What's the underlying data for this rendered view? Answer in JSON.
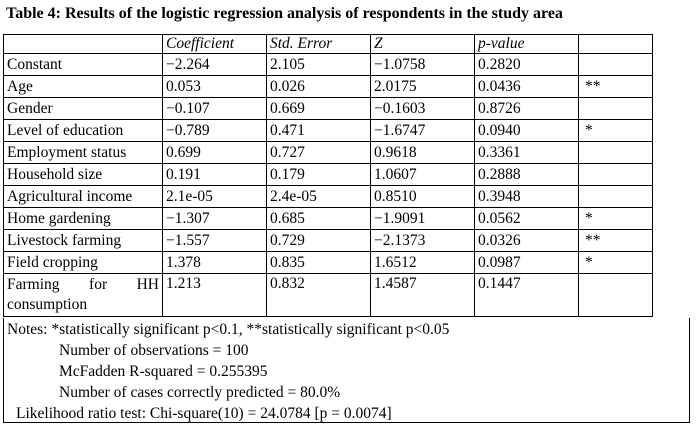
{
  "caption": "Table 4: Results of the logistic regression analysis of respondents in the study area",
  "table": {
    "headers": [
      "",
      "Coefficient",
      "Std. Error",
      "Z",
      "p-value",
      ""
    ],
    "rows": [
      {
        "variable": "Constant",
        "coef": "−2.264",
        "se": "2.105",
        "z": "−1.0758",
        "p": "0.2820",
        "sig": ""
      },
      {
        "variable": "Age",
        "coef": "0.053",
        "se": "0.026",
        "z": "2.0175",
        "p": "0.0436",
        "sig": "**"
      },
      {
        "variable": "Gender",
        "coef": "−0.107",
        "se": "0.669",
        "z": "−0.1603",
        "p": "0.8726",
        "sig": ""
      },
      {
        "variable": "Level of education",
        "coef": "−0.789",
        "se": "0.471",
        "z": "−1.6747",
        "p": "0.0940",
        "sig": "*"
      },
      {
        "variable": "Employment status",
        "coef": "0.699",
        "se": "0.727",
        "z": "0.9618",
        "p": "0.3361",
        "sig": ""
      },
      {
        "variable": "Household size",
        "coef": "0.191",
        "se": "0.179",
        "z": "1.0607",
        "p": "0.2888",
        "sig": ""
      },
      {
        "variable": "Agricultural income",
        "coef": "2.1e-05",
        "se": "2.4e-05",
        "z": "0.8510",
        "p": "0.3948",
        "sig": ""
      },
      {
        "variable": "Home gardening",
        "coef": "−1.307",
        "se": "0.685",
        "z": "−1.9091",
        "p": "0.0562",
        "sig": "*"
      },
      {
        "variable": "Livestock farming",
        "coef": "−1.557",
        "se": "0.729",
        "z": "−2.1373",
        "p": "0.0326",
        "sig": "**"
      },
      {
        "variable": "Field cropping",
        "coef": "1.378",
        "se": "0.835",
        "z": "1.6512",
        "p": "0.0987",
        "sig": "*"
      }
    ],
    "last_row": {
      "variable_line1_words": [
        "Farming",
        "for",
        "HH"
      ],
      "variable_line2": "consumption",
      "coef": "1.213",
      "se": "0.832",
      "z": "1.4587",
      "p": "0.1447",
      "sig": ""
    }
  },
  "notes": {
    "significance": "Notes: *statistically significant p<0.1, **statistically significant p<0.05",
    "observations": "Number of observations = 100",
    "r_squared": "McFadden R-squared  = 0.255395",
    "correct": "Number of cases correctly predicted = 80.0%",
    "likelihood": "Likelihood ratio test: Chi-square(10) = 24.0784 [p = 0.0074]"
  }
}
